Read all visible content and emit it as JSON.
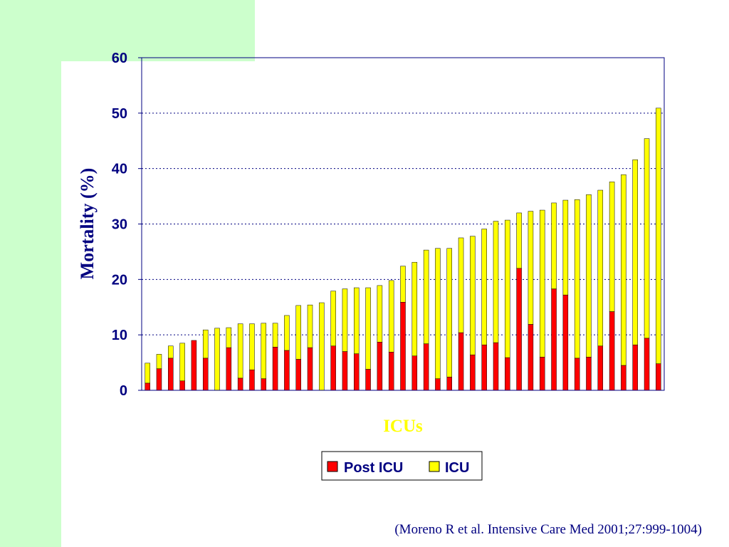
{
  "slide": {
    "citation": "(Moreno R et al. Intensive Care Med 2001;27:999-1004)",
    "colors": {
      "background_band": "#ccffcc",
      "text_navy": "#000080",
      "xlabel_yellow": "#ffff00"
    }
  },
  "chart_data": {
    "type": "bar",
    "stacked": true,
    "xlabel": "ICUs",
    "ylabel": "Mortality (%)",
    "ylim": [
      0,
      60
    ],
    "yticks": [
      "0",
      "10",
      "20",
      "30",
      "40",
      "50",
      "60"
    ],
    "grid": "horizontal dotted",
    "legend": {
      "position": "bottom-center"
    },
    "series": [
      {
        "name": "Post ICU",
        "color": "#ff0000",
        "values": [
          1.3,
          3.9,
          5.8,
          1.7,
          9.0,
          5.8,
          0,
          7.7,
          2.2,
          3.7,
          2.1,
          7.8,
          7.2,
          5.6,
          7.7,
          0,
          8.0,
          7.0,
          6.6,
          3.8,
          8.7,
          6.9,
          15.9,
          6.2,
          8.4,
          2.1,
          2.4,
          10.4,
          6.4,
          8.2,
          8.6,
          5.9,
          22.0,
          11.9,
          6.0,
          18.3,
          17.2,
          5.8,
          6.0,
          8.0,
          14.2,
          4.5,
          8.2,
          9.4,
          4.8
        ]
      },
      {
        "name": "ICU",
        "color": "#ffff00",
        "values": [
          3.6,
          2.6,
          2.2,
          6.8,
          0,
          5.1,
          11.2,
          3.6,
          9.8,
          8.3,
          10.0,
          4.3,
          6.3,
          9.7,
          7.7,
          15.8,
          9.9,
          11.3,
          11.9,
          14.7,
          10.2,
          12.9,
          6.5,
          16.9,
          16.9,
          23.5,
          23.2,
          17.1,
          21.4,
          20.9,
          21.9,
          24.8,
          10.0,
          20.4,
          26.5,
          15.5,
          17.1,
          28.6,
          29.3,
          28.1,
          23.4,
          34.4,
          33.4,
          36.0,
          46.1
        ]
      }
    ]
  }
}
